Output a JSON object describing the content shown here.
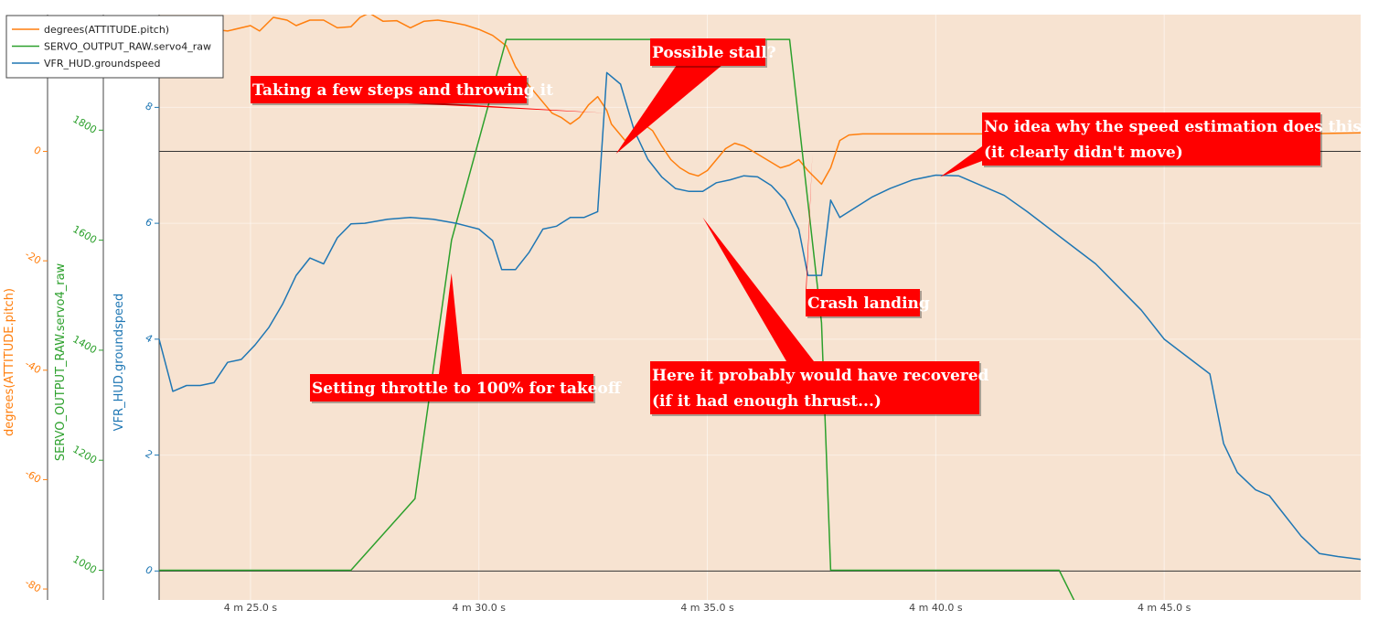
{
  "chart_data": {
    "type": "line",
    "x_axis": {
      "range_s": [
        263.0,
        289.3
      ],
      "ticks": [
        {
          "value": 265,
          "label": "4 m 25.0 s"
        },
        {
          "value": 270,
          "label": "4 m 30.0 s"
        },
        {
          "value": 275,
          "label": "4 m 35.0 s"
        },
        {
          "value": 280,
          "label": "4 m 40.0 s"
        },
        {
          "value": 285,
          "label": "4 m 45.0 s"
        }
      ]
    },
    "y_axes": [
      {
        "id": "pitch",
        "title": "degrees(ATTITUDE.pitch)",
        "color": "#ff7f0e",
        "range": [
          -82.0,
          25.0
        ],
        "ticks": [
          {
            "v": 20,
            "l": "20"
          },
          {
            "v": 0,
            "l": "0"
          },
          {
            "v": -20,
            "l": "-20"
          },
          {
            "v": -40,
            "l": "-40"
          },
          {
            "v": -60,
            "l": "-60"
          },
          {
            "v": -80,
            "l": "-80"
          }
        ]
      },
      {
        "id": "servo",
        "title": "SERVO_OUTPUT_RAW.servo4_raw",
        "color": "#2ca02c",
        "range": [
          946,
          2010
        ],
        "ticks": [
          {
            "v": 1800,
            "l": "1800"
          },
          {
            "v": 1600,
            "l": "1600"
          },
          {
            "v": 1400,
            "l": "1400"
          },
          {
            "v": 1200,
            "l": "1200"
          },
          {
            "v": 1000,
            "l": "1000"
          }
        ]
      },
      {
        "id": "speed",
        "title": "VFR_HUD.groundspeed",
        "color": "#1f77b4",
        "range": [
          -0.5,
          9.6
        ],
        "ticks": [
          {
            "v": 8,
            "l": "8"
          },
          {
            "v": 6,
            "l": "6"
          },
          {
            "v": 4,
            "l": "4"
          },
          {
            "v": 2,
            "l": "2"
          },
          {
            "v": 0,
            "l": "0"
          }
        ]
      }
    ],
    "series": [
      {
        "name": "degrees(ATTITUDE.pitch)",
        "axis": "pitch",
        "color": "#ff7f0e",
        "points": [
          [
            263.0,
            22
          ],
          [
            263.5,
            21.5
          ],
          [
            264.0,
            22.5
          ],
          [
            264.5,
            22
          ],
          [
            265.0,
            23
          ],
          [
            265.2,
            22
          ],
          [
            265.5,
            24.5
          ],
          [
            265.8,
            24
          ],
          [
            266.0,
            23
          ],
          [
            266.3,
            24
          ],
          [
            266.6,
            24
          ],
          [
            266.9,
            22.6
          ],
          [
            267.2,
            22.8
          ],
          [
            267.4,
            24.5
          ],
          [
            267.6,
            25.3
          ],
          [
            267.9,
            23.8
          ],
          [
            268.2,
            23.9
          ],
          [
            268.5,
            22.6
          ],
          [
            268.8,
            23.8
          ],
          [
            269.1,
            24
          ],
          [
            269.4,
            23.6
          ],
          [
            269.7,
            23.1
          ],
          [
            270.0,
            22.3
          ],
          [
            270.3,
            21.2
          ],
          [
            270.6,
            19.3
          ],
          [
            270.8,
            15.5
          ],
          [
            271.0,
            13
          ],
          [
            271.2,
            11
          ],
          [
            271.4,
            9
          ],
          [
            271.6,
            7
          ],
          [
            271.8,
            6.2
          ],
          [
            272.0,
            5
          ],
          [
            272.2,
            6.2
          ],
          [
            272.4,
            8.5
          ],
          [
            272.6,
            10
          ],
          [
            272.8,
            7.5
          ],
          [
            272.9,
            5
          ],
          [
            273.0,
            4
          ],
          [
            273.1,
            3
          ],
          [
            273.2,
            2
          ],
          [
            273.4,
            4
          ],
          [
            273.6,
            5
          ],
          [
            273.8,
            3.8
          ],
          [
            274.0,
            1
          ],
          [
            274.2,
            -1.5
          ],
          [
            274.4,
            -3
          ],
          [
            274.6,
            -4
          ],
          [
            274.8,
            -4.5
          ],
          [
            275.0,
            -3.5
          ],
          [
            275.2,
            -1.5
          ],
          [
            275.4,
            0.5
          ],
          [
            275.6,
            1.5
          ],
          [
            275.8,
            1
          ],
          [
            276.0,
            0
          ],
          [
            276.2,
            -1
          ],
          [
            276.4,
            -2
          ],
          [
            276.6,
            -3
          ],
          [
            276.8,
            -2.5
          ],
          [
            277.0,
            -1.5
          ],
          [
            277.2,
            -3.5
          ],
          [
            277.5,
            -6
          ],
          [
            277.7,
            -3
          ],
          [
            277.9,
            2
          ],
          [
            278.1,
            3
          ],
          [
            278.4,
            3.2
          ],
          [
            279,
            3.2
          ],
          [
            280,
            3.2
          ],
          [
            281,
            3.2
          ],
          [
            282,
            3.1
          ],
          [
            283,
            3.1
          ],
          [
            284,
            3.0
          ],
          [
            285,
            2.9
          ],
          [
            286,
            2.9
          ],
          [
            287,
            3.0
          ],
          [
            288,
            3.2
          ],
          [
            289.3,
            3.4
          ]
        ]
      },
      {
        "name": "SERVO_OUTPUT_RAW.servo4_raw",
        "axis": "servo",
        "color": "#2ca02c",
        "points": [
          [
            263.0,
            1000
          ],
          [
            267.2,
            1000
          ],
          [
            268.6,
            1130
          ],
          [
            269.4,
            1600
          ],
          [
            270.6,
            1965
          ],
          [
            276.8,
            1965
          ],
          [
            277.5,
            1450
          ],
          [
            277.7,
            1000
          ],
          [
            282.7,
            1000
          ],
          [
            283.3,
            900
          ]
        ]
      },
      {
        "name": "VFR_HUD.groundspeed",
        "axis": "speed",
        "color": "#1f77b4",
        "points": [
          [
            263.0,
            4.0
          ],
          [
            263.3,
            3.1
          ],
          [
            263.6,
            3.2
          ],
          [
            263.9,
            3.2
          ],
          [
            264.2,
            3.25
          ],
          [
            264.5,
            3.6
          ],
          [
            264.8,
            3.65
          ],
          [
            265.1,
            3.9
          ],
          [
            265.4,
            4.2
          ],
          [
            265.7,
            4.6
          ],
          [
            266.0,
            5.1
          ],
          [
            266.3,
            5.4
          ],
          [
            266.6,
            5.3
          ],
          [
            266.9,
            5.75
          ],
          [
            267.2,
            5.99
          ],
          [
            267.5,
            6.0
          ],
          [
            268.0,
            6.07
          ],
          [
            268.5,
            6.1
          ],
          [
            269.0,
            6.07
          ],
          [
            269.5,
            6.0
          ],
          [
            270.0,
            5.9
          ],
          [
            270.3,
            5.7
          ],
          [
            270.5,
            5.2
          ],
          [
            270.8,
            5.2
          ],
          [
            271.1,
            5.5
          ],
          [
            271.4,
            5.9
          ],
          [
            271.7,
            5.95
          ],
          [
            272.0,
            6.1
          ],
          [
            272.3,
            6.1
          ],
          [
            272.6,
            6.2
          ],
          [
            272.8,
            8.6
          ],
          [
            273.1,
            8.4
          ],
          [
            273.4,
            7.6
          ],
          [
            273.7,
            7.1
          ],
          [
            274.0,
            6.8
          ],
          [
            274.3,
            6.6
          ],
          [
            274.6,
            6.55
          ],
          [
            274.9,
            6.55
          ],
          [
            275.2,
            6.7
          ],
          [
            275.5,
            6.75
          ],
          [
            275.8,
            6.82
          ],
          [
            276.1,
            6.8
          ],
          [
            276.4,
            6.65
          ],
          [
            276.7,
            6.4
          ],
          [
            277.0,
            5.9
          ],
          [
            277.2,
            5.1
          ],
          [
            277.5,
            5.1
          ],
          [
            277.7,
            6.4
          ],
          [
            277.9,
            6.1
          ],
          [
            278.2,
            6.25
          ],
          [
            278.6,
            6.45
          ],
          [
            279.0,
            6.6
          ],
          [
            279.5,
            6.75
          ],
          [
            280.0,
            6.83
          ],
          [
            280.5,
            6.82
          ],
          [
            281.0,
            6.65
          ],
          [
            281.5,
            6.48
          ],
          [
            282.0,
            6.2
          ],
          [
            282.5,
            5.9
          ],
          [
            283.0,
            5.6
          ],
          [
            283.5,
            5.3
          ],
          [
            284.0,
            4.9
          ],
          [
            284.5,
            4.5
          ],
          [
            285.0,
            4.0
          ],
          [
            285.5,
            3.7
          ],
          [
            286.0,
            3.4
          ],
          [
            286.3,
            2.2
          ],
          [
            286.6,
            1.7
          ],
          [
            287.0,
            1.4
          ],
          [
            287.3,
            1.3
          ],
          [
            287.6,
            1.0
          ],
          [
            288.0,
            0.6
          ],
          [
            288.4,
            0.3
          ],
          [
            288.8,
            0.25
          ],
          [
            289.3,
            0.2
          ]
        ]
      }
    ],
    "legend": {
      "placement": "top-left",
      "entries": [
        "degrees(ATTITUDE.pitch)",
        "SERVO_OUTPUT_RAW.servo4_raw",
        "VFR_HUD.groundspeed"
      ]
    },
    "colors": {
      "plot_background": "#f7e3d1",
      "annotation_fill": "#ff0000"
    },
    "annotations": [
      {
        "lines": [
          "Taking a few steps and throwing it"
        ],
        "arrow_to": [
          272.8,
          7.0
        ],
        "arrow_axis": "pitch"
      },
      {
        "lines": [
          "Possible stall?"
        ],
        "arrow_to": [
          273.0,
          7.2
        ],
        "arrow_axis": "speed"
      },
      {
        "lines": [
          "No idea why the speed estimation does this",
          "(it clearly didn't move)"
        ],
        "arrow_to": [
          280.1,
          6.8
        ],
        "arrow_axis": "speed"
      },
      {
        "lines": [
          "Setting throttle to 100% for takeoff"
        ],
        "arrow_to": [
          269.4,
          1540
        ],
        "arrow_axis": "servo"
      },
      {
        "lines": [
          "Crash landing"
        ],
        "arrow_to": [
          277.3,
          -0.5
        ],
        "arrow_axis": "pitch"
      },
      {
        "lines": [
          "Here it probably would have recovered",
          "(if it had enough thrust...)"
        ],
        "arrow_to": [
          274.9,
          6.1
        ],
        "arrow_axis": "speed"
      }
    ]
  }
}
